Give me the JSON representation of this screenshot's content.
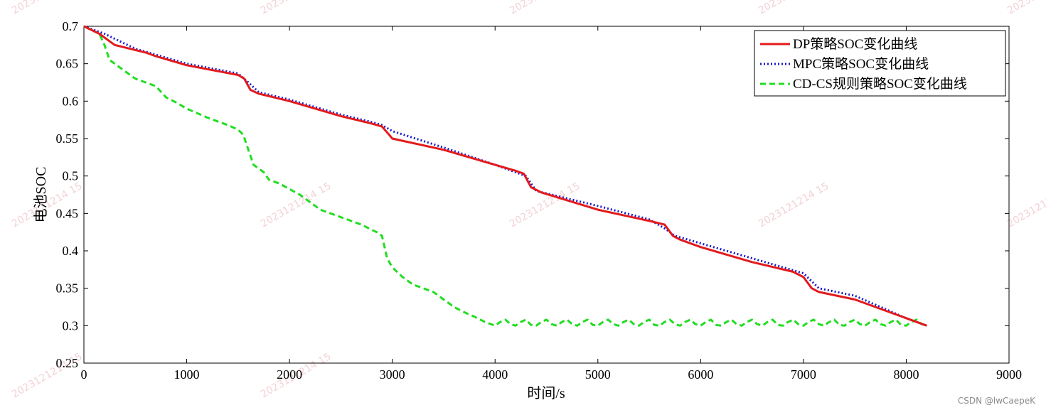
{
  "watermark": {
    "text": "2023121214 15",
    "color": "#f3d2d6"
  },
  "credit": {
    "text": "CSDN @lwCaepeK"
  },
  "chart_data": {
    "type": "line",
    "title": "",
    "xlabel": "时间/s",
    "ylabel": "电池SOC",
    "xlim": [
      0,
      9000
    ],
    "ylim": [
      0.25,
      0.7
    ],
    "xticks": [
      0,
      1000,
      2000,
      3000,
      4000,
      5000,
      6000,
      7000,
      8000,
      9000
    ],
    "yticks": [
      0.25,
      0.3,
      0.35,
      0.4,
      0.45,
      0.5,
      0.55,
      0.6,
      0.65,
      0.7
    ],
    "xtick_labels": [
      "0",
      "1000",
      "2000",
      "3000",
      "4000",
      "5000",
      "6000",
      "7000",
      "8000",
      "9000"
    ],
    "ytick_labels": [
      "0.25",
      "0.3",
      "0.35",
      "0.4",
      "0.45",
      "0.5",
      "0.55",
      "0.6",
      "0.65",
      "0.7"
    ],
    "grid": false,
    "legend_position": "top-right",
    "series": [
      {
        "name": "DP策略SOC变化曲线",
        "color": "#e31a1c",
        "style": "solid",
        "x": [
          0,
          150,
          250,
          300,
          600,
          700,
          1000,
          1500,
          1560,
          1620,
          1700,
          2000,
          2500,
          2800,
          2900,
          2970,
          3000,
          3500,
          4000,
          4200,
          4280,
          4350,
          4450,
          5000,
          5500,
          5650,
          5730,
          5800,
          6000,
          6500,
          6900,
          7000,
          7080,
          7150,
          7500,
          8000,
          8200
        ],
        "y": [
          0.7,
          0.69,
          0.68,
          0.675,
          0.665,
          0.66,
          0.648,
          0.635,
          0.63,
          0.615,
          0.61,
          0.6,
          0.58,
          0.57,
          0.566,
          0.555,
          0.55,
          0.535,
          0.515,
          0.507,
          0.503,
          0.485,
          0.478,
          0.455,
          0.44,
          0.435,
          0.42,
          0.415,
          0.405,
          0.385,
          0.372,
          0.365,
          0.35,
          0.345,
          0.335,
          0.31,
          0.3
        ]
      },
      {
        "name": "MPC策略SOC变化曲线",
        "color": "#1a1acc",
        "style": "dotted",
        "x": [
          0,
          200,
          500,
          1000,
          1500,
          1600,
          1700,
          2000,
          2500,
          2800,
          2900,
          3000,
          3500,
          4000,
          4300,
          4400,
          5000,
          5500,
          5650,
          5750,
          6000,
          6500,
          7000,
          7150,
          7500,
          8000,
          8200
        ],
        "y": [
          0.7,
          0.69,
          0.67,
          0.65,
          0.637,
          0.625,
          0.612,
          0.602,
          0.582,
          0.572,
          0.568,
          0.56,
          0.538,
          0.515,
          0.5,
          0.48,
          0.46,
          0.442,
          0.43,
          0.42,
          0.41,
          0.39,
          0.37,
          0.35,
          0.34,
          0.31,
          0.3
        ]
      },
      {
        "name": "CD-CS规则策略SOC变化曲线",
        "color": "#22dd22",
        "style": "dashed",
        "x": [
          0,
          150,
          200,
          250,
          400,
          500,
          700,
          800,
          900,
          1000,
          1200,
          1300,
          1400,
          1500,
          1550,
          1600,
          1650,
          1700,
          1750,
          1800,
          1900,
          2100,
          2200,
          2300,
          2500,
          2600,
          2700,
          2800,
          2850,
          2900,
          2950,
          3000,
          3100,
          3200,
          3400,
          3500,
          3600,
          3700,
          3800,
          3900,
          4000,
          4050,
          4100,
          4150,
          4200,
          4250,
          4300,
          4350,
          4400,
          4450,
          4500,
          4550,
          4600,
          4650,
          4700,
          4750,
          4800,
          4850,
          4900,
          4950,
          5000,
          5050,
          5100,
          5150,
          5200,
          5250,
          5300,
          5350,
          5400,
          5450,
          5500,
          5550,
          5600,
          5650,
          5700,
          5750,
          5800,
          5850,
          5900,
          5950,
          6000,
          6050,
          6100,
          6150,
          6200,
          6250,
          6300,
          6350,
          6400,
          6450,
          6500,
          6550,
          6600,
          6650,
          6700,
          6750,
          6800,
          6850,
          6900,
          6950,
          7000,
          7050,
          7100,
          7150,
          7200,
          7250,
          7300,
          7350,
          7400,
          7450,
          7500,
          7550,
          7600,
          7650,
          7700,
          7750,
          7800,
          7850,
          7900,
          7950,
          8000,
          8050,
          8100,
          8150,
          8200
        ],
        "y": [
          0.7,
          0.69,
          0.675,
          0.655,
          0.64,
          0.63,
          0.62,
          0.605,
          0.598,
          0.59,
          0.578,
          0.573,
          0.568,
          0.562,
          0.555,
          0.535,
          0.515,
          0.51,
          0.505,
          0.495,
          0.49,
          0.475,
          0.465,
          0.455,
          0.445,
          0.44,
          0.435,
          0.428,
          0.425,
          0.42,
          0.39,
          0.378,
          0.365,
          0.355,
          0.345,
          0.335,
          0.325,
          0.318,
          0.312,
          0.305,
          0.3,
          0.305,
          0.308,
          0.302,
          0.3,
          0.305,
          0.308,
          0.301,
          0.3,
          0.305,
          0.308,
          0.302,
          0.3,
          0.305,
          0.308,
          0.302,
          0.3,
          0.305,
          0.308,
          0.301,
          0.3,
          0.305,
          0.308,
          0.302,
          0.3,
          0.305,
          0.308,
          0.302,
          0.3,
          0.305,
          0.308,
          0.301,
          0.3,
          0.305,
          0.308,
          0.302,
          0.3,
          0.305,
          0.308,
          0.302,
          0.3,
          0.305,
          0.308,
          0.301,
          0.3,
          0.305,
          0.308,
          0.302,
          0.3,
          0.305,
          0.308,
          0.302,
          0.3,
          0.305,
          0.308,
          0.301,
          0.3,
          0.305,
          0.308,
          0.302,
          0.3,
          0.305,
          0.308,
          0.302,
          0.3,
          0.305,
          0.308,
          0.301,
          0.3,
          0.305,
          0.308,
          0.302,
          0.3,
          0.305,
          0.308,
          0.302,
          0.3,
          0.305,
          0.308,
          0.301,
          0.3,
          0.305,
          0.308,
          0.302,
          0.3
        ]
      }
    ]
  }
}
